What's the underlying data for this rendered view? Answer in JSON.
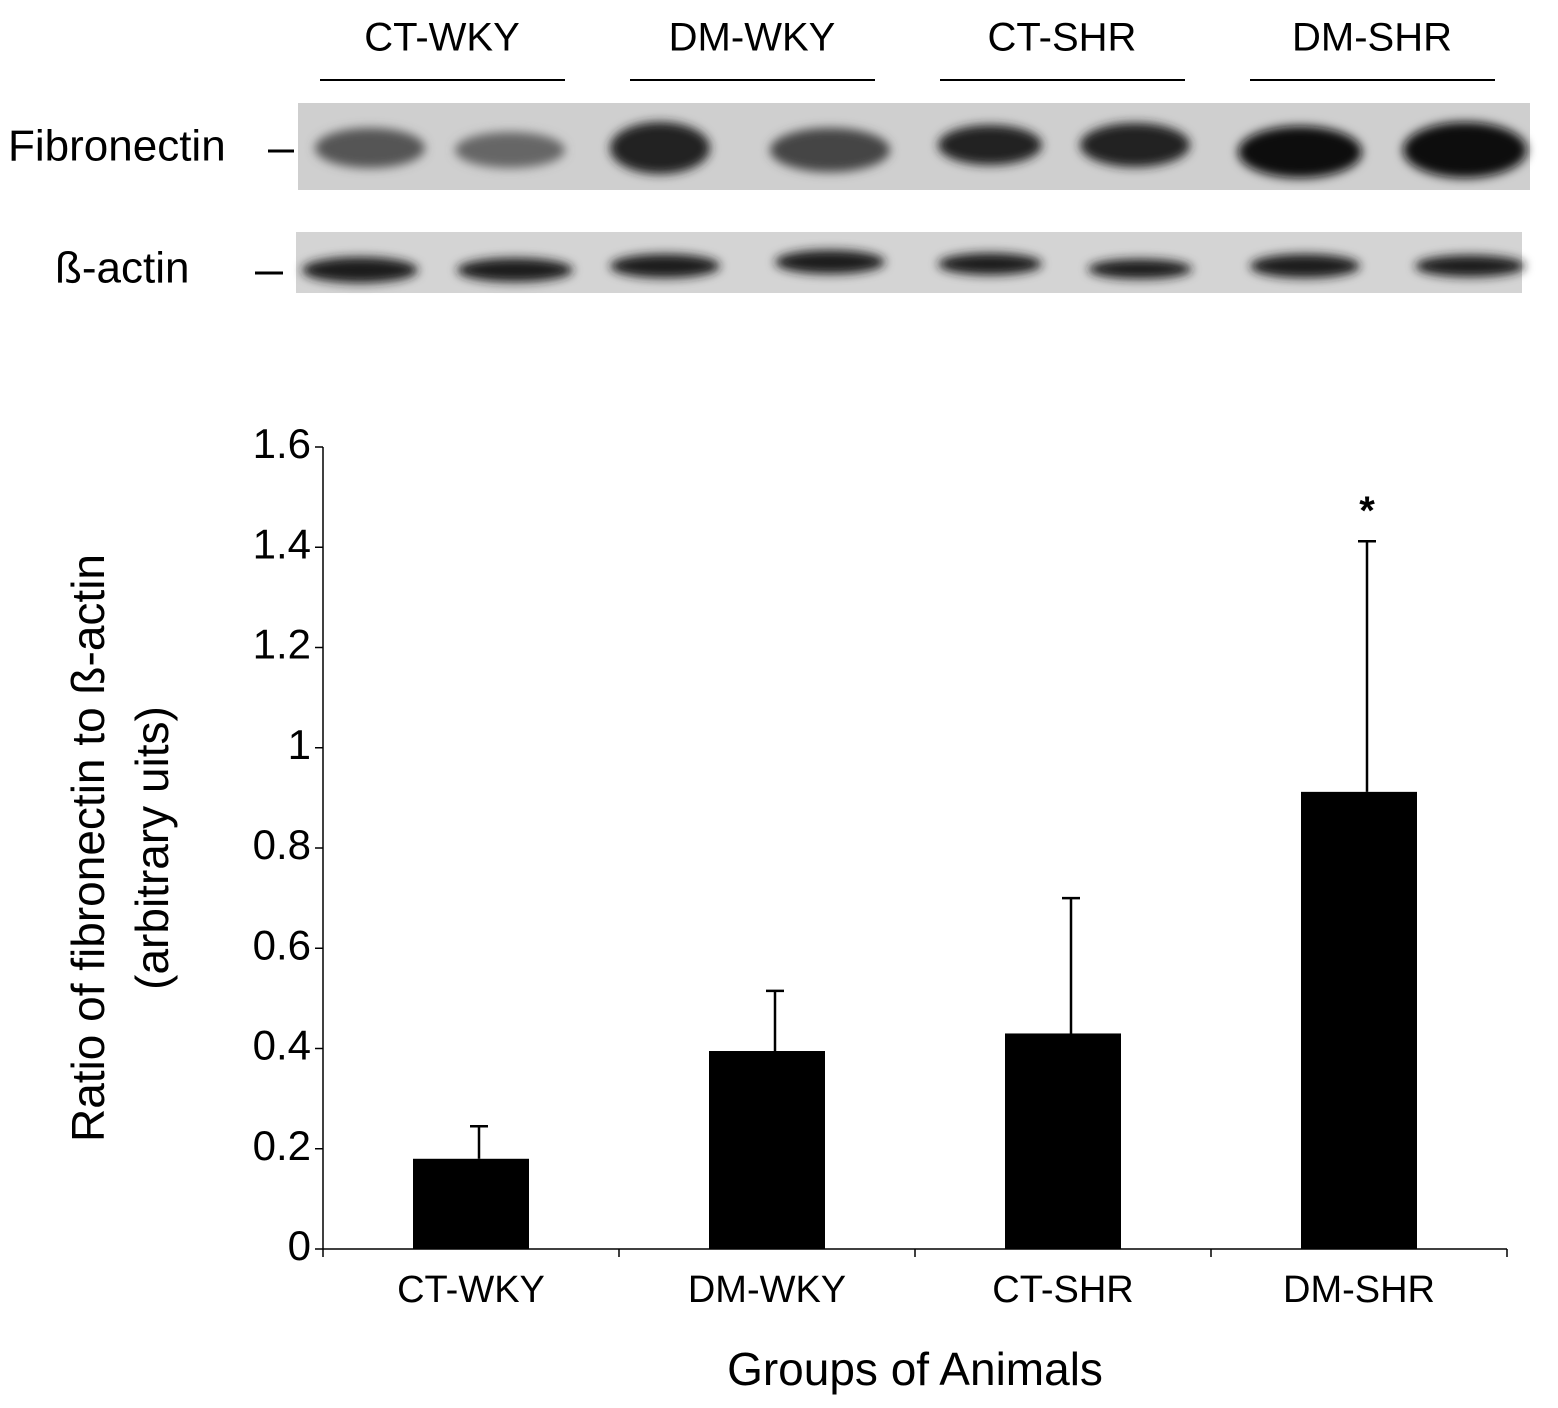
{
  "blot": {
    "rows": [
      "Fibronectin",
      "ß-actin"
    ]
  },
  "chart_data": {
    "type": "bar",
    "categories": [
      "CT-WKY",
      "DM-WKY",
      "CT-SHR",
      "DM-SHR"
    ],
    "values": [
      0.18,
      0.395,
      0.43,
      0.912
    ],
    "errors": [
      0.065,
      0.12,
      0.27,
      0.5
    ],
    "color": "#000000",
    "ylim": [
      0,
      1.6
    ],
    "yticks": [
      0,
      0.2,
      0.4,
      0.6,
      0.8,
      1,
      1.2,
      1.4,
      1.6
    ],
    "ylabel": [
      "Ratio of fibronectin to ß-actin",
      "(arbitrary uits)"
    ],
    "xlabel": "Groups of Animals",
    "annotations": [
      {
        "text": "*",
        "category": "DM-SHR"
      }
    ],
    "grid": false
  }
}
